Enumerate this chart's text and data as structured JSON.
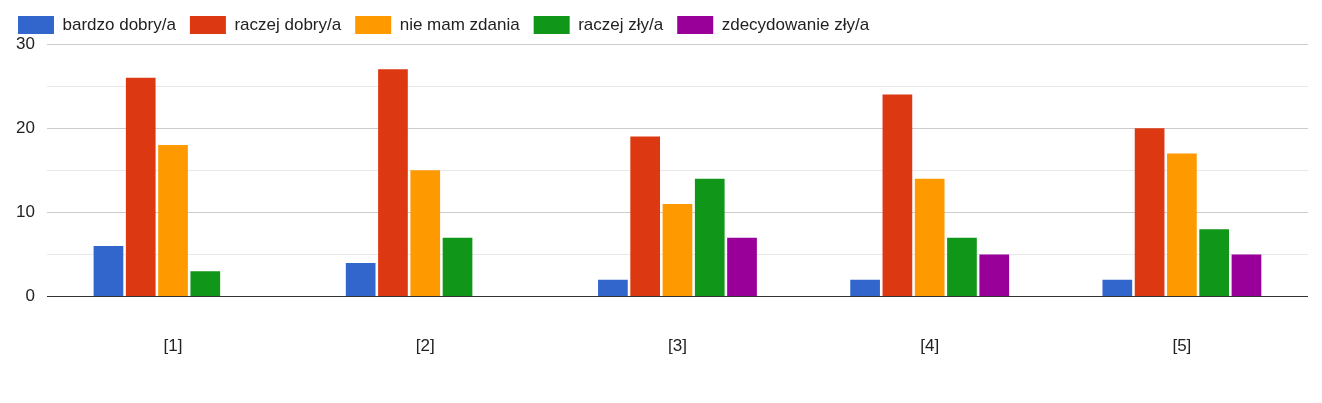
{
  "chart_data": {
    "type": "bar",
    "categories": [
      "[1]",
      "[2]",
      "[3]",
      "[4]",
      "[5]"
    ],
    "series": [
      {
        "name": "bardzo dobry/a",
        "color": "#3366cc",
        "values": [
          6,
          4,
          2,
          2,
          2
        ]
      },
      {
        "name": "raczej dobry/a",
        "color": "#dc3912",
        "values": [
          26,
          27,
          19,
          24,
          20
        ]
      },
      {
        "name": "nie mam zdania",
        "color": "#ff9900",
        "values": [
          18,
          15,
          11,
          14,
          17
        ]
      },
      {
        "name": "raczej zły/a",
        "color": "#109618",
        "values": [
          3,
          7,
          14,
          7,
          8
        ]
      },
      {
        "name": "zdecydowanie zły/a",
        "color": "#990099",
        "values": [
          0,
          0,
          7,
          5,
          5
        ]
      }
    ],
    "ylim": [
      0,
      30
    ],
    "yticks": [
      0,
      {
        "value": 5,
        "label": null
      },
      10,
      {
        "value": 15,
        "label": null
      },
      20,
      {
        "value": 25,
        "label": null
      },
      30
    ],
    "grid": "y",
    "legend": "top left"
  }
}
